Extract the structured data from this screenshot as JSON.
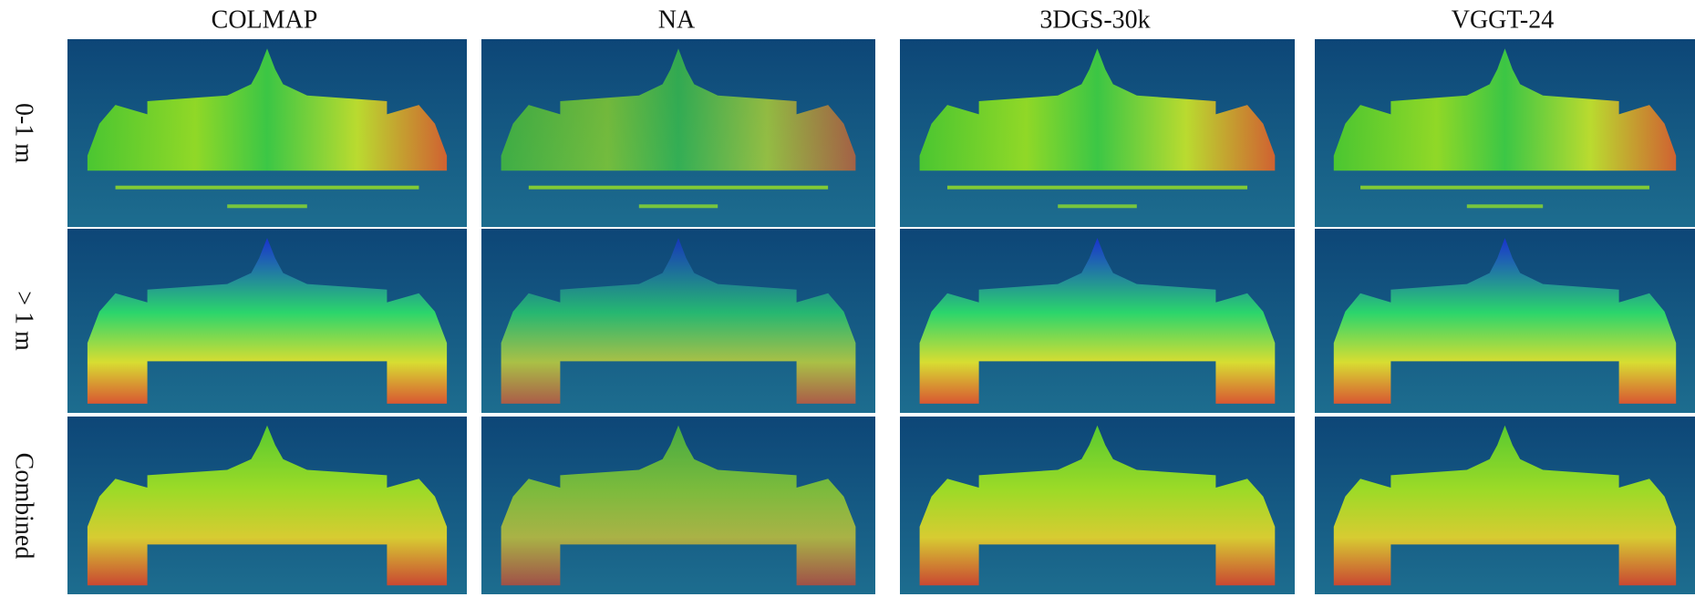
{
  "figure": {
    "columns": [
      "COLMAP",
      "NA",
      "3DGS-30k",
      "VGGT-24"
    ],
    "rows": [
      "0-1 m",
      "> 1 m",
      "Combined"
    ]
  }
}
